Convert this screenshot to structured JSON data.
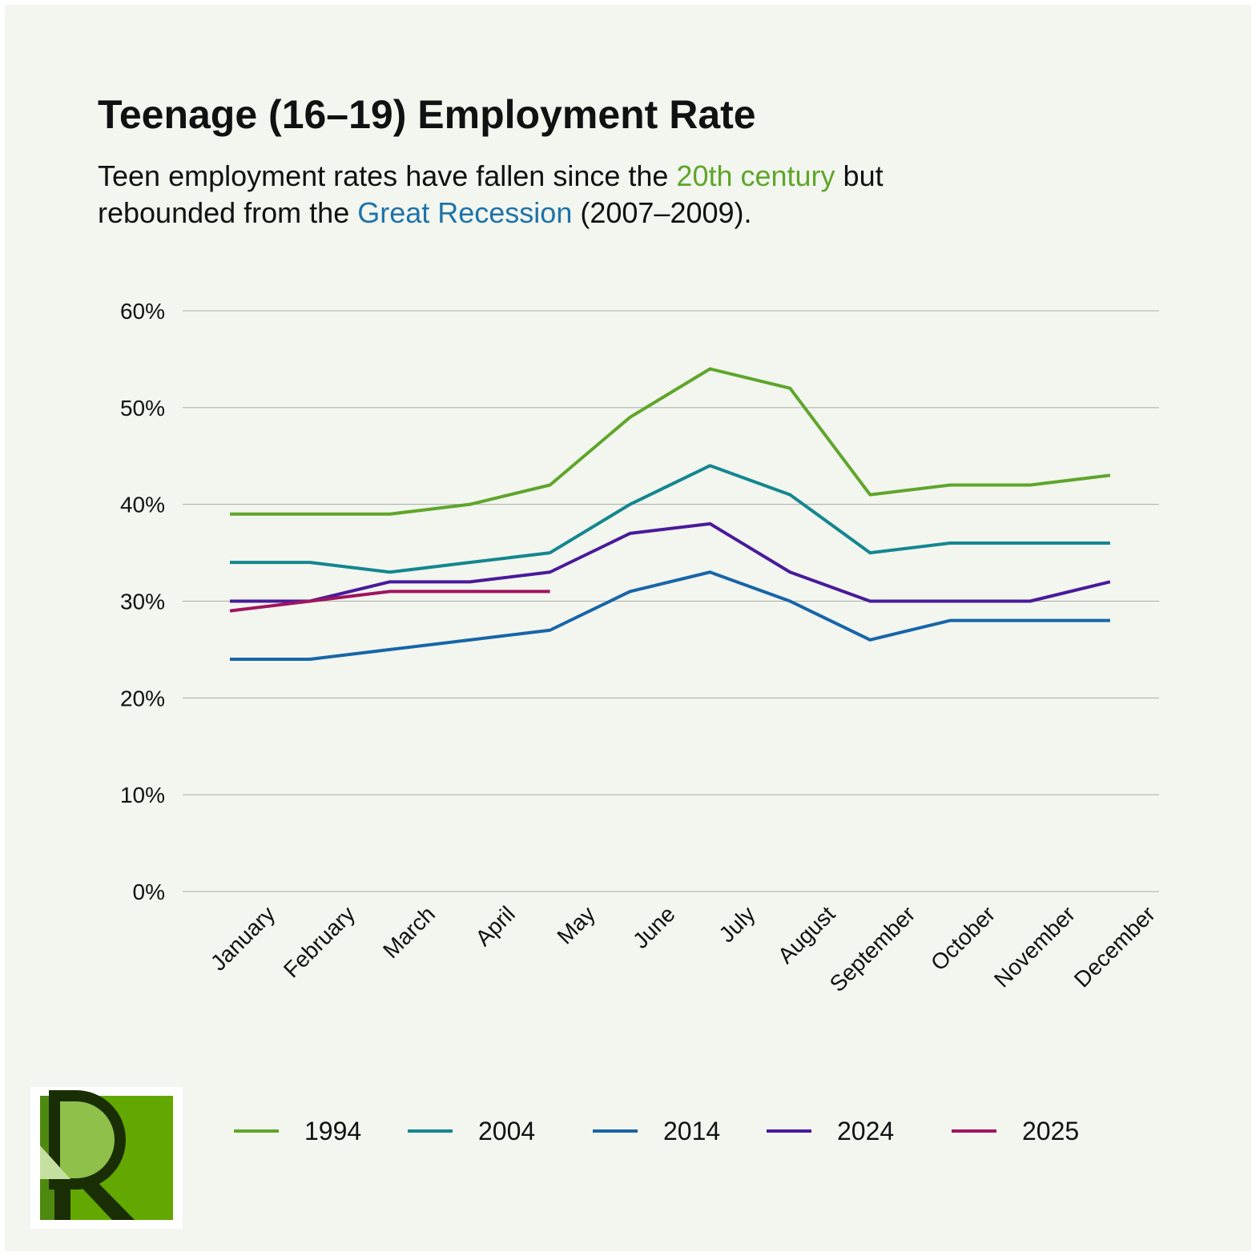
{
  "chart_data": {
    "type": "line",
    "title": "Teenage (16–19) Employment Rate",
    "subtitle_lines": [
      [
        {
          "text": "Teen employment rates have fallen since the "
        },
        {
          "text": "20th century",
          "color": "#5fa52a"
        },
        {
          "text": " but"
        }
      ],
      [
        {
          "text": "rebounded from the "
        },
        {
          "text": "Great Recession",
          "color": "#1f73a8"
        },
        {
          "text": " (2007–2009)."
        }
      ]
    ],
    "categories": [
      "January",
      "February",
      "March",
      "April",
      "May",
      "June",
      "July",
      "August",
      "September",
      "October",
      "November",
      "December"
    ],
    "series": [
      {
        "name": "1994",
        "color": "#5fa52a",
        "values": [
          39,
          39,
          39,
          40,
          42,
          49,
          54,
          52,
          41,
          42,
          42,
          43
        ]
      },
      {
        "name": "2004",
        "color": "#14868f",
        "values": [
          34,
          34,
          33,
          34,
          35,
          40,
          44,
          41,
          35,
          36,
          36,
          36
        ]
      },
      {
        "name": "2014",
        "color": "#1865a8",
        "values": [
          24,
          24,
          25,
          26,
          27,
          31,
          33,
          30,
          26,
          28,
          28,
          28
        ]
      },
      {
        "name": "2024",
        "color": "#4a1a9a",
        "values": [
          30,
          30,
          32,
          32,
          33,
          37,
          38,
          33,
          30,
          30,
          30,
          32
        ]
      },
      {
        "name": "2025",
        "color": "#a0145f",
        "values": [
          29,
          30,
          31,
          31,
          31,
          null,
          null,
          null,
          null,
          null,
          null,
          null
        ]
      }
    ],
    "ylim": [
      0,
      60
    ],
    "yticks": [
      {
        "value": 0,
        "label": "0%"
      },
      {
        "value": 10,
        "label": "10%"
      },
      {
        "value": 20,
        "label": "20%"
      },
      {
        "value": 30,
        "label": "30%"
      },
      {
        "value": 40,
        "label": "40%"
      },
      {
        "value": 50,
        "label": "50%"
      },
      {
        "value": 60,
        "label": "60%"
      }
    ],
    "grid": true,
    "legend": "bottom"
  }
}
